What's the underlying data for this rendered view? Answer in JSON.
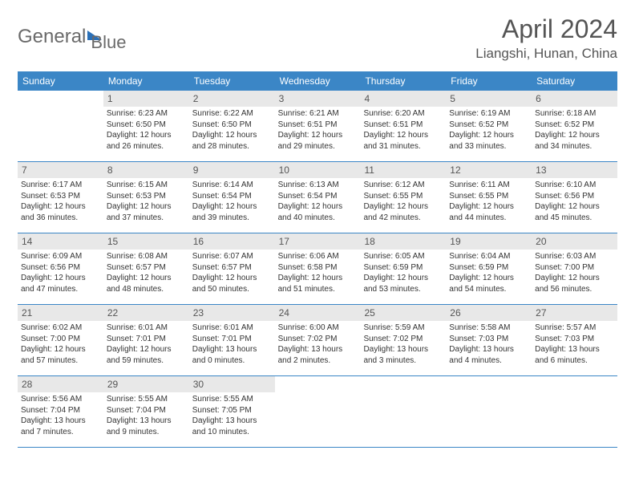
{
  "logo": {
    "text1": "General",
    "text2": "Blue"
  },
  "title": "April 2024",
  "location": "Liangshi, Hunan, China",
  "colors": {
    "header_bg": "#3b86c6",
    "header_text": "#ffffff",
    "daynum_bg": "#e8e8e8",
    "border": "#3b86c6",
    "logo_gray": "#6a6a6a",
    "logo_blue": "#2a70b8"
  },
  "day_names": [
    "Sunday",
    "Monday",
    "Tuesday",
    "Wednesday",
    "Thursday",
    "Friday",
    "Saturday"
  ],
  "weeks": [
    [
      {
        "num": "",
        "sunrise": "",
        "sunset": "",
        "daylight1": "",
        "daylight2": ""
      },
      {
        "num": "1",
        "sunrise": "Sunrise: 6:23 AM",
        "sunset": "Sunset: 6:50 PM",
        "daylight1": "Daylight: 12 hours",
        "daylight2": "and 26 minutes."
      },
      {
        "num": "2",
        "sunrise": "Sunrise: 6:22 AM",
        "sunset": "Sunset: 6:50 PM",
        "daylight1": "Daylight: 12 hours",
        "daylight2": "and 28 minutes."
      },
      {
        "num": "3",
        "sunrise": "Sunrise: 6:21 AM",
        "sunset": "Sunset: 6:51 PM",
        "daylight1": "Daylight: 12 hours",
        "daylight2": "and 29 minutes."
      },
      {
        "num": "4",
        "sunrise": "Sunrise: 6:20 AM",
        "sunset": "Sunset: 6:51 PM",
        "daylight1": "Daylight: 12 hours",
        "daylight2": "and 31 minutes."
      },
      {
        "num": "5",
        "sunrise": "Sunrise: 6:19 AM",
        "sunset": "Sunset: 6:52 PM",
        "daylight1": "Daylight: 12 hours",
        "daylight2": "and 33 minutes."
      },
      {
        "num": "6",
        "sunrise": "Sunrise: 6:18 AM",
        "sunset": "Sunset: 6:52 PM",
        "daylight1": "Daylight: 12 hours",
        "daylight2": "and 34 minutes."
      }
    ],
    [
      {
        "num": "7",
        "sunrise": "Sunrise: 6:17 AM",
        "sunset": "Sunset: 6:53 PM",
        "daylight1": "Daylight: 12 hours",
        "daylight2": "and 36 minutes."
      },
      {
        "num": "8",
        "sunrise": "Sunrise: 6:15 AM",
        "sunset": "Sunset: 6:53 PM",
        "daylight1": "Daylight: 12 hours",
        "daylight2": "and 37 minutes."
      },
      {
        "num": "9",
        "sunrise": "Sunrise: 6:14 AM",
        "sunset": "Sunset: 6:54 PM",
        "daylight1": "Daylight: 12 hours",
        "daylight2": "and 39 minutes."
      },
      {
        "num": "10",
        "sunrise": "Sunrise: 6:13 AM",
        "sunset": "Sunset: 6:54 PM",
        "daylight1": "Daylight: 12 hours",
        "daylight2": "and 40 minutes."
      },
      {
        "num": "11",
        "sunrise": "Sunrise: 6:12 AM",
        "sunset": "Sunset: 6:55 PM",
        "daylight1": "Daylight: 12 hours",
        "daylight2": "and 42 minutes."
      },
      {
        "num": "12",
        "sunrise": "Sunrise: 6:11 AM",
        "sunset": "Sunset: 6:55 PM",
        "daylight1": "Daylight: 12 hours",
        "daylight2": "and 44 minutes."
      },
      {
        "num": "13",
        "sunrise": "Sunrise: 6:10 AM",
        "sunset": "Sunset: 6:56 PM",
        "daylight1": "Daylight: 12 hours",
        "daylight2": "and 45 minutes."
      }
    ],
    [
      {
        "num": "14",
        "sunrise": "Sunrise: 6:09 AM",
        "sunset": "Sunset: 6:56 PM",
        "daylight1": "Daylight: 12 hours",
        "daylight2": "and 47 minutes."
      },
      {
        "num": "15",
        "sunrise": "Sunrise: 6:08 AM",
        "sunset": "Sunset: 6:57 PM",
        "daylight1": "Daylight: 12 hours",
        "daylight2": "and 48 minutes."
      },
      {
        "num": "16",
        "sunrise": "Sunrise: 6:07 AM",
        "sunset": "Sunset: 6:57 PM",
        "daylight1": "Daylight: 12 hours",
        "daylight2": "and 50 minutes."
      },
      {
        "num": "17",
        "sunrise": "Sunrise: 6:06 AM",
        "sunset": "Sunset: 6:58 PM",
        "daylight1": "Daylight: 12 hours",
        "daylight2": "and 51 minutes."
      },
      {
        "num": "18",
        "sunrise": "Sunrise: 6:05 AM",
        "sunset": "Sunset: 6:59 PM",
        "daylight1": "Daylight: 12 hours",
        "daylight2": "and 53 minutes."
      },
      {
        "num": "19",
        "sunrise": "Sunrise: 6:04 AM",
        "sunset": "Sunset: 6:59 PM",
        "daylight1": "Daylight: 12 hours",
        "daylight2": "and 54 minutes."
      },
      {
        "num": "20",
        "sunrise": "Sunrise: 6:03 AM",
        "sunset": "Sunset: 7:00 PM",
        "daylight1": "Daylight: 12 hours",
        "daylight2": "and 56 minutes."
      }
    ],
    [
      {
        "num": "21",
        "sunrise": "Sunrise: 6:02 AM",
        "sunset": "Sunset: 7:00 PM",
        "daylight1": "Daylight: 12 hours",
        "daylight2": "and 57 minutes."
      },
      {
        "num": "22",
        "sunrise": "Sunrise: 6:01 AM",
        "sunset": "Sunset: 7:01 PM",
        "daylight1": "Daylight: 12 hours",
        "daylight2": "and 59 minutes."
      },
      {
        "num": "23",
        "sunrise": "Sunrise: 6:01 AM",
        "sunset": "Sunset: 7:01 PM",
        "daylight1": "Daylight: 13 hours",
        "daylight2": "and 0 minutes."
      },
      {
        "num": "24",
        "sunrise": "Sunrise: 6:00 AM",
        "sunset": "Sunset: 7:02 PM",
        "daylight1": "Daylight: 13 hours",
        "daylight2": "and 2 minutes."
      },
      {
        "num": "25",
        "sunrise": "Sunrise: 5:59 AM",
        "sunset": "Sunset: 7:02 PM",
        "daylight1": "Daylight: 13 hours",
        "daylight2": "and 3 minutes."
      },
      {
        "num": "26",
        "sunrise": "Sunrise: 5:58 AM",
        "sunset": "Sunset: 7:03 PM",
        "daylight1": "Daylight: 13 hours",
        "daylight2": "and 4 minutes."
      },
      {
        "num": "27",
        "sunrise": "Sunrise: 5:57 AM",
        "sunset": "Sunset: 7:03 PM",
        "daylight1": "Daylight: 13 hours",
        "daylight2": "and 6 minutes."
      }
    ],
    [
      {
        "num": "28",
        "sunrise": "Sunrise: 5:56 AM",
        "sunset": "Sunset: 7:04 PM",
        "daylight1": "Daylight: 13 hours",
        "daylight2": "and 7 minutes."
      },
      {
        "num": "29",
        "sunrise": "Sunrise: 5:55 AM",
        "sunset": "Sunset: 7:04 PM",
        "daylight1": "Daylight: 13 hours",
        "daylight2": "and 9 minutes."
      },
      {
        "num": "30",
        "sunrise": "Sunrise: 5:55 AM",
        "sunset": "Sunset: 7:05 PM",
        "daylight1": "Daylight: 13 hours",
        "daylight2": "and 10 minutes."
      },
      {
        "num": "",
        "sunrise": "",
        "sunset": "",
        "daylight1": "",
        "daylight2": ""
      },
      {
        "num": "",
        "sunrise": "",
        "sunset": "",
        "daylight1": "",
        "daylight2": ""
      },
      {
        "num": "",
        "sunrise": "",
        "sunset": "",
        "daylight1": "",
        "daylight2": ""
      },
      {
        "num": "",
        "sunrise": "",
        "sunset": "",
        "daylight1": "",
        "daylight2": ""
      }
    ]
  ]
}
